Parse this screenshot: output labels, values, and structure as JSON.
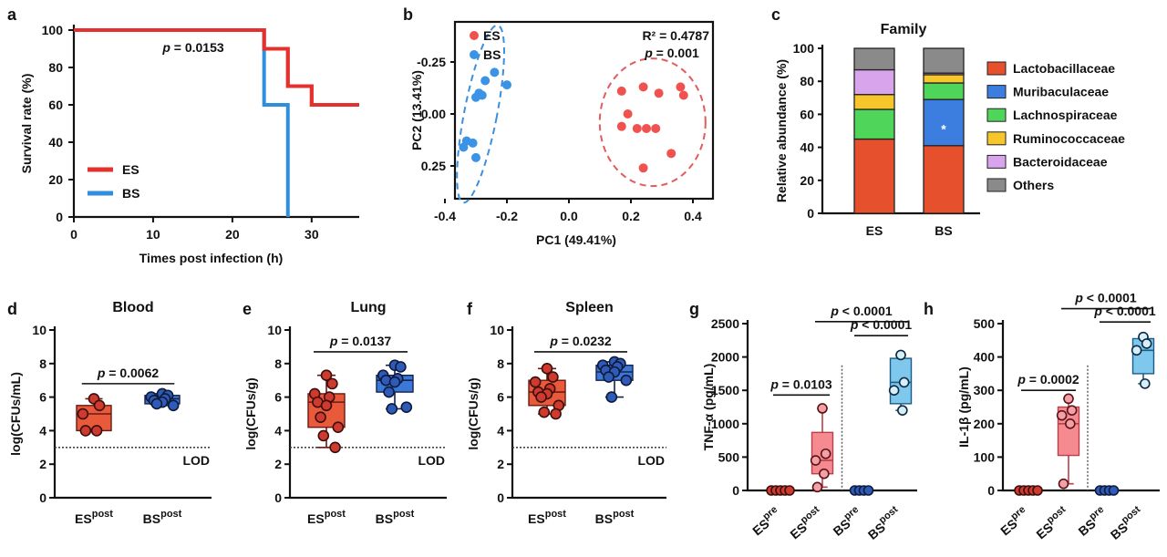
{
  "panel_labels": [
    "a",
    "b",
    "c",
    "d",
    "e",
    "f",
    "g",
    "h"
  ],
  "colors": {
    "ES": "#e5312d",
    "BS": "#2f8fdc",
    "ES_box": "#e95a3a",
    "BS_box": "#3b78d8",
    "ES_dot": "#cf3a2f",
    "BS_dot": "#2f5bb8",
    "g_box": "#f58a90",
    "g_box2": "#7ec8ee"
  },
  "chart_data": [
    {
      "id": "a",
      "type": "line",
      "step": true,
      "xlabel": "Times post infection (h)",
      "ylabel": "Survival rate (%)",
      "xlim": [
        0,
        36
      ],
      "ylim": [
        0,
        100
      ],
      "xticks": [
        "0",
        "10",
        "20",
        "30"
      ],
      "yticks": [
        "0",
        "20",
        "40",
        "60",
        "80",
        "100"
      ],
      "annotation": "p = 0.0153",
      "series": [
        {
          "name": "ES",
          "x": [
            0,
            24,
            24,
            27,
            27,
            30,
            30,
            36
          ],
          "y": [
            100,
            100,
            90,
            90,
            70,
            70,
            60,
            60
          ]
        },
        {
          "name": "BS",
          "x": [
            0,
            24,
            24,
            27,
            27
          ],
          "y": [
            100,
            100,
            60,
            60,
            0
          ]
        }
      ]
    },
    {
      "id": "b",
      "type": "scatter",
      "xlabel": "PC1 (49.41%)",
      "ylabel": "PC2 (13.41%)",
      "xlim": [
        -0.4,
        0.45
      ],
      "ylim": [
        -0.4,
        0.4
      ],
      "xticks": [
        "-0.4",
        "-0.2",
        "0.0",
        "0.2",
        "0.4"
      ],
      "yticks": [
        "-0.25",
        "0.00",
        "0.25"
      ],
      "annotation_r2": "R² = 0.4787",
      "annotation_p": "p = 0.001",
      "series": [
        {
          "name": "ES",
          "points": [
            [
              0.17,
              0.11
            ],
            [
              0.24,
              0.13
            ],
            [
              0.29,
              0.1
            ],
            [
              0.36,
              0.13
            ],
            [
              0.37,
              0.09
            ],
            [
              0.19,
              0.0
            ],
            [
              0.22,
              -0.07
            ],
            [
              0.25,
              -0.07
            ],
            [
              0.17,
              -0.06
            ],
            [
              0.33,
              -0.19
            ],
            [
              0.24,
              -0.26
            ],
            [
              0.28,
              -0.07
            ]
          ]
        },
        {
          "name": "BS",
          "points": [
            [
              -0.24,
              0.2
            ],
            [
              -0.27,
              0.16
            ],
            [
              -0.2,
              0.14
            ],
            [
              -0.29,
              0.1
            ],
            [
              -0.3,
              0.08
            ],
            [
              -0.28,
              0.09
            ],
            [
              -0.33,
              -0.13
            ],
            [
              -0.31,
              -0.14
            ],
            [
              -0.34,
              -0.16
            ],
            [
              -0.3,
              -0.21
            ]
          ]
        }
      ]
    },
    {
      "id": "c",
      "type": "bar",
      "stacked": true,
      "title": "Family",
      "ylabel": "Relative abundance (%)",
      "categories": [
        "ES",
        "BS"
      ],
      "ylim": [
        0,
        100
      ],
      "yticks": [
        "0",
        "20",
        "40",
        "60",
        "80",
        "100"
      ],
      "marker": "*",
      "series": [
        {
          "name": "Lactobacillaceae",
          "color": "#e6502d",
          "values": [
            45,
            41
          ]
        },
        {
          "name": "Muribaculaceae",
          "color": "#3c7ee0",
          "values": [
            0,
            28
          ]
        },
        {
          "name": "Lachnospiraceae",
          "color": "#4fd55a",
          "values": [
            18,
            10
          ]
        },
        {
          "name": "Ruminococcaceae",
          "color": "#f7c62a",
          "values": [
            9,
            5
          ]
        },
        {
          "name": "Bacteroidaceae",
          "color": "#d8a4ec",
          "values": [
            15,
            1
          ]
        },
        {
          "name": "Others",
          "color": "#8a8a8a",
          "values": [
            13,
            15
          ]
        }
      ]
    },
    {
      "id": "d",
      "type": "box",
      "title": "Blood",
      "ylabel": "log(CFUs/mL)",
      "ylim": [
        0,
        10
      ],
      "yticks": [
        "0",
        "2",
        "4",
        "6",
        "8",
        "10"
      ],
      "lod": 3,
      "lod_label": "LOD",
      "categories": [
        {
          "base": "ES",
          "sup": "post"
        },
        {
          "base": "BS",
          "sup": "post"
        }
      ],
      "groups": [
        {
          "min": 4.0,
          "q1": 4.0,
          "median": 5.0,
          "q3": 5.5,
          "max": 5.9,
          "points": [
            5.9,
            5.5,
            5.0,
            4.0,
            4.0
          ]
        },
        {
          "min": 5.5,
          "q1": 5.6,
          "median": 5.9,
          "q3": 6.1,
          "max": 6.2,
          "points": [
            6.2,
            6.1,
            6.0,
            5.9,
            5.8,
            5.7,
            5.6,
            5.5
          ]
        }
      ],
      "comparisons": [
        {
          "a": 0,
          "b": 1,
          "y": 6.8,
          "label": "p = 0.0062"
        }
      ]
    },
    {
      "id": "e",
      "type": "box",
      "title": "Lung",
      "ylabel": "log(CFUs/g)",
      "ylim": [
        0,
        10
      ],
      "yticks": [
        "0",
        "2",
        "4",
        "6",
        "8",
        "10"
      ],
      "lod": 3,
      "lod_label": "LOD",
      "categories": [
        {
          "base": "ES",
          "sup": "post"
        },
        {
          "base": "BS",
          "sup": "post"
        }
      ],
      "groups": [
        {
          "min": 3.0,
          "q1": 4.2,
          "median": 5.7,
          "q3": 6.2,
          "max": 7.3,
          "points": [
            7.3,
            6.8,
            6.2,
            6.0,
            5.7,
            5.5,
            4.8,
            4.2,
            3.7,
            3.0
          ]
        },
        {
          "min": 5.3,
          "q1": 6.3,
          "median": 7.0,
          "q3": 7.3,
          "max": 7.9,
          "points": [
            7.9,
            7.8,
            7.3,
            7.1,
            7.0,
            6.9,
            6.3,
            5.4,
            5.3
          ]
        }
      ],
      "comparisons": [
        {
          "a": 0,
          "b": 1,
          "y": 8.7,
          "label": "p = 0.0137"
        }
      ]
    },
    {
      "id": "f",
      "type": "box",
      "title": "Spleen",
      "ylabel": "log(CFUs/g)",
      "ylim": [
        0,
        10
      ],
      "yticks": [
        "0",
        "2",
        "4",
        "6",
        "8",
        "10"
      ],
      "lod": 3,
      "lod_label": "LOD",
      "categories": [
        {
          "base": "ES",
          "sup": "post"
        },
        {
          "base": "BS",
          "sup": "post"
        }
      ],
      "groups": [
        {
          "min": 5.0,
          "q1": 5.5,
          "median": 6.3,
          "q3": 7.0,
          "max": 7.7,
          "points": [
            7.7,
            7.2,
            6.9,
            6.5,
            6.3,
            6.2,
            6.0,
            5.5,
            5.1,
            5.0
          ]
        },
        {
          "min": 6.0,
          "q1": 7.0,
          "median": 7.5,
          "q3": 7.9,
          "max": 8.1,
          "points": [
            8.1,
            8.0,
            7.9,
            7.8,
            7.6,
            7.5,
            7.2,
            7.0,
            6.0
          ]
        }
      ],
      "comparisons": [
        {
          "a": 0,
          "b": 1,
          "y": 8.7,
          "label": "p = 0.0232"
        }
      ]
    },
    {
      "id": "g",
      "type": "box",
      "ylabel": "TNF-α (pg/mL)",
      "ylim": [
        0,
        2500
      ],
      "yticks": [
        "0",
        "500",
        "1000",
        "1500",
        "2000",
        "2500"
      ],
      "categories": [
        {
          "base": "ES",
          "sup": "pre"
        },
        {
          "base": "ES",
          "sup": "post"
        },
        {
          "base": "BS",
          "sup": "pre"
        },
        {
          "base": "BS",
          "sup": "post"
        }
      ],
      "groups": [
        {
          "min": 0,
          "q1": 0,
          "median": 0,
          "q3": 0,
          "max": 0,
          "points": [
            0,
            0,
            0,
            0,
            0
          ],
          "style": "ES"
        },
        {
          "min": 50,
          "q1": 250,
          "median": 450,
          "q3": 870,
          "max": 1230,
          "points": [
            1230,
            550,
            450,
            250,
            50
          ],
          "style": "ESlight"
        },
        {
          "min": 0,
          "q1": 0,
          "median": 0,
          "q3": 0,
          "max": 0,
          "points": [
            0,
            0,
            0,
            0
          ],
          "style": "BS"
        },
        {
          "min": 1200,
          "q1": 1300,
          "median": 1620,
          "q3": 1980,
          "max": 2030,
          "points": [
            2030,
            1620,
            1500,
            1200
          ],
          "style": "BSlight"
        }
      ],
      "divider_after": 1,
      "comparisons": [
        {
          "a": 0,
          "b": 1,
          "y": 1430,
          "label": "p = 0.0103"
        },
        {
          "a": 2,
          "b": 3,
          "y": 2320,
          "label": "p < 0.0001"
        },
        {
          "a": 1,
          "b": 3,
          "y": 2530,
          "label": "p < 0.0001"
        }
      ]
    },
    {
      "id": "h",
      "type": "box",
      "ylabel": "IL-1β (pg/mL)",
      "ylim": [
        0,
        500
      ],
      "yticks": [
        "0",
        "100",
        "200",
        "300",
        "400",
        "500"
      ],
      "categories": [
        {
          "base": "ES",
          "sup": "pre"
        },
        {
          "base": "ES",
          "sup": "post"
        },
        {
          "base": "BS",
          "sup": "pre"
        },
        {
          "base": "BS",
          "sup": "post"
        }
      ],
      "groups": [
        {
          "min": 0,
          "q1": 0,
          "median": 0,
          "q3": 0,
          "max": 0,
          "points": [
            0,
            0,
            0,
            0,
            0
          ],
          "style": "ES"
        },
        {
          "min": 20,
          "q1": 105,
          "median": 200,
          "q3": 250,
          "max": 275,
          "points": [
            275,
            240,
            225,
            200,
            20
          ],
          "style": "ESlight"
        },
        {
          "min": 0,
          "q1": 0,
          "median": 0,
          "q3": 0,
          "max": 0,
          "points": [
            0,
            0,
            0,
            0
          ],
          "style": "BS"
        },
        {
          "min": 320,
          "q1": 350,
          "median": 420,
          "q3": 455,
          "max": 460,
          "points": [
            460,
            440,
            420,
            320
          ],
          "style": "BSlight"
        }
      ],
      "divider_after": 1,
      "comparisons": [
        {
          "a": 0,
          "b": 1,
          "y": 300,
          "label": "p = 0.0002"
        },
        {
          "a": 2,
          "b": 3,
          "y": 505,
          "label": "p < 0.0001"
        },
        {
          "a": 1,
          "b": 3,
          "y": 545,
          "label": "p < 0.0001"
        }
      ]
    }
  ]
}
